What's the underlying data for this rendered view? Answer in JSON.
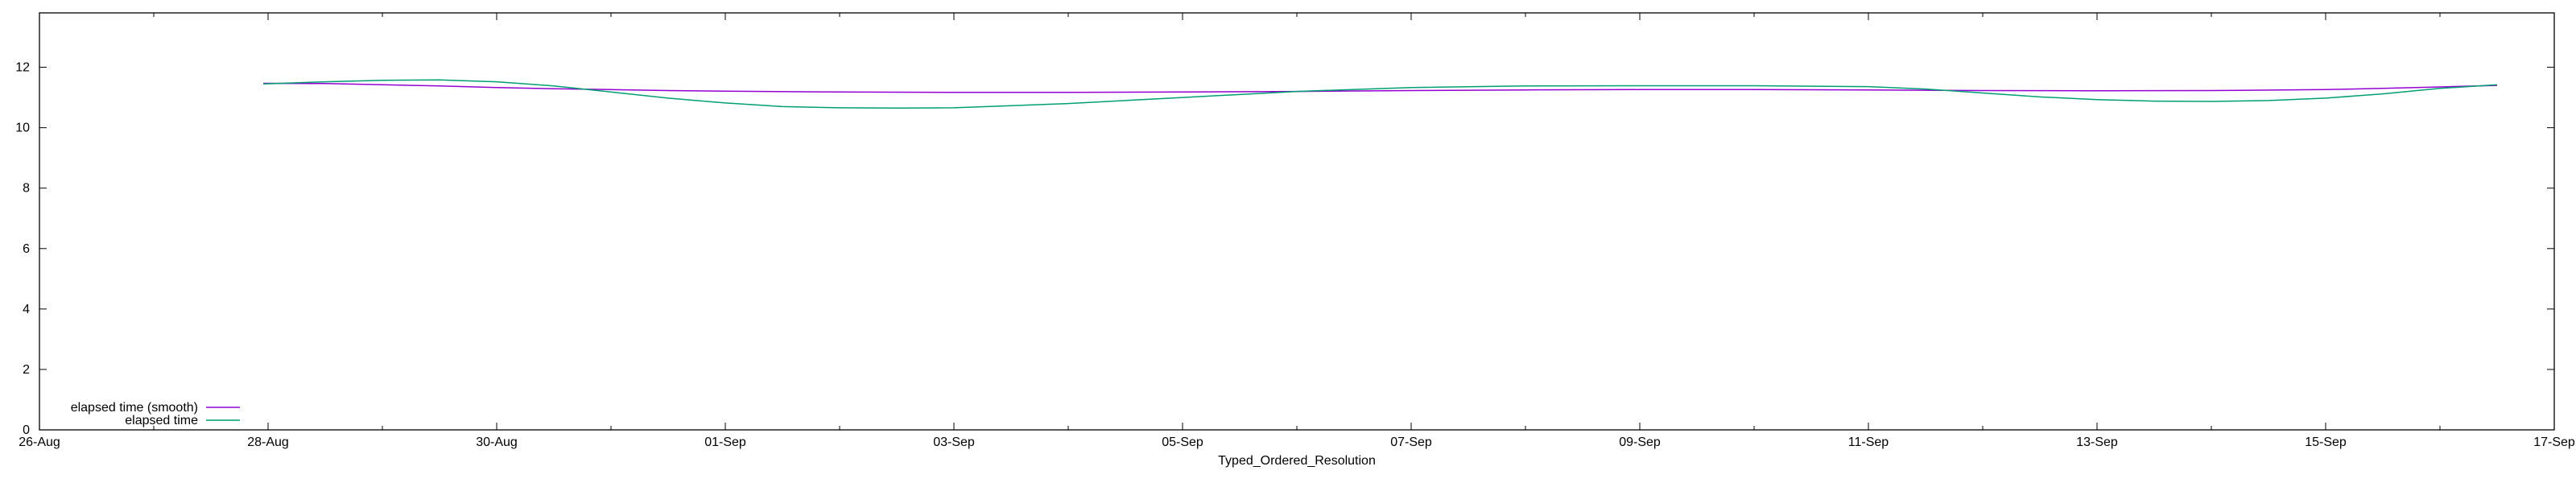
{
  "chart_data": {
    "type": "line",
    "title": "",
    "xlabel": "Typed_Ordered_Resolution",
    "ylabel": "",
    "x_ticks": [
      "26-Aug",
      "28-Aug",
      "30-Aug",
      "01-Sep",
      "03-Sep",
      "05-Sep",
      "07-Sep",
      "09-Sep",
      "11-Sep",
      "13-Sep",
      "15-Sep",
      "17-Sep"
    ],
    "xlim": [
      "2024-08-26",
      "2024-09-17"
    ],
    "y_ticks": [
      0,
      2,
      4,
      6,
      8,
      10,
      12
    ],
    "ylim": [
      0,
      13.8
    ],
    "grid": false,
    "legend_position": "bottom-left",
    "series": [
      {
        "name": "elapsed time (smooth)",
        "color": "#9400d3",
        "points": [
          [
            "2024-08-27T23:00",
            11.47
          ],
          [
            "2024-08-28T12:00",
            11.46
          ],
          [
            "2024-08-29T00:00",
            11.42
          ],
          [
            "2024-08-29T12:00",
            11.38
          ],
          [
            "2024-08-30T00:00",
            11.33
          ],
          [
            "2024-08-30T12:00",
            11.29
          ],
          [
            "2024-08-31T00:00",
            11.26
          ],
          [
            "2024-08-31T12:00",
            11.23
          ],
          [
            "2024-09-01T00:00",
            11.21
          ],
          [
            "2024-09-02T00:00",
            11.18
          ],
          [
            "2024-09-03T00:00",
            11.17
          ],
          [
            "2024-09-04T00:00",
            11.17
          ],
          [
            "2024-09-05T00:00",
            11.18
          ],
          [
            "2024-09-06T00:00",
            11.2
          ],
          [
            "2024-09-07T00:00",
            11.23
          ],
          [
            "2024-09-08T00:00",
            11.25
          ],
          [
            "2024-09-09T00:00",
            11.26
          ],
          [
            "2024-09-10T00:00",
            11.26
          ],
          [
            "2024-09-11T00:00",
            11.25
          ],
          [
            "2024-09-12T00:00",
            11.23
          ],
          [
            "2024-09-13T00:00",
            11.22
          ],
          [
            "2024-09-14T00:00",
            11.23
          ],
          [
            "2024-09-15T00:00",
            11.26
          ],
          [
            "2024-09-15T12:00",
            11.3
          ],
          [
            "2024-09-16T00:00",
            11.35
          ],
          [
            "2024-09-16T12:00",
            11.4
          ]
        ]
      },
      {
        "name": "elapsed time",
        "color": "#009e73",
        "points": [
          [
            "2024-08-27T23:00",
            11.45
          ],
          [
            "2024-08-28T12:00",
            11.52
          ],
          [
            "2024-08-29T00:00",
            11.57
          ],
          [
            "2024-08-29T12:00",
            11.58
          ],
          [
            "2024-08-30T00:00",
            11.52
          ],
          [
            "2024-08-30T12:00",
            11.38
          ],
          [
            "2024-08-31T00:00",
            11.18
          ],
          [
            "2024-08-31T12:00",
            10.98
          ],
          [
            "2024-09-01T00:00",
            10.82
          ],
          [
            "2024-09-01T12:00",
            10.7
          ],
          [
            "2024-09-02T00:00",
            10.66
          ],
          [
            "2024-09-02T12:00",
            10.65
          ],
          [
            "2024-09-03T00:00",
            10.66
          ],
          [
            "2024-09-04T00:00",
            10.8
          ],
          [
            "2024-09-05T00:00",
            11.0
          ],
          [
            "2024-09-06T00:00",
            11.2
          ],
          [
            "2024-09-07T00:00",
            11.33
          ],
          [
            "2024-09-08T00:00",
            11.38
          ],
          [
            "2024-09-09T00:00",
            11.39
          ],
          [
            "2024-09-10T00:00",
            11.39
          ],
          [
            "2024-09-11T00:00",
            11.36
          ],
          [
            "2024-09-11T12:00",
            11.28
          ],
          [
            "2024-09-12T00:00",
            11.15
          ],
          [
            "2024-09-12T12:00",
            11.02
          ],
          [
            "2024-09-13T00:00",
            10.93
          ],
          [
            "2024-09-13T12:00",
            10.88
          ],
          [
            "2024-09-14T00:00",
            10.87
          ],
          [
            "2024-09-14T12:00",
            10.9
          ],
          [
            "2024-09-15T00:00",
            10.98
          ],
          [
            "2024-09-15T12:00",
            11.12
          ],
          [
            "2024-09-16T00:00",
            11.3
          ],
          [
            "2024-09-16T12:00",
            11.42
          ]
        ]
      }
    ]
  }
}
